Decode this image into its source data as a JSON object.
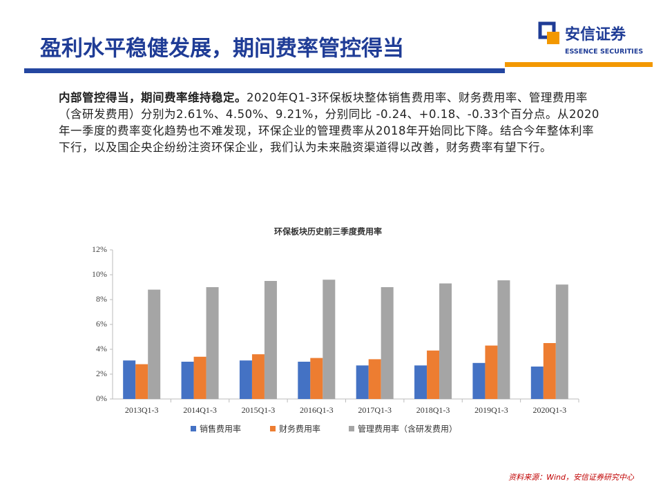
{
  "header": {
    "title": "盈利水平稳健发展，期间费率管控得当"
  },
  "logo": {
    "name": "安信证券",
    "english": "ESSENCE SECURITIES"
  },
  "body": {
    "lead": "内部管控得当，期间费率维持稳定。",
    "text": "2020年Q1-3环保板块整体销售费用率、财务费用率、管理费用率（含研发费用）分别为2.61%、4.50%、9.21%，分别同比 -0.24、+0.18、-0.33个百分点。从2020年一季度的费率变化趋势也不难发现，环保企业的管理费率从2018年开始同比下降。结合今年整体利率下行，以及国企央企纷纷注资环保企业，我们认为未来融资渠道得以改善，财务费率有望下行。"
  },
  "chart_data": {
    "type": "bar",
    "title": "环保板块历史前三季度费用率",
    "categories": [
      "2013Q1-3",
      "2014Q1-3",
      "2015Q1-3",
      "2016Q1-3",
      "2017Q1-3",
      "2018Q1-3",
      "2019Q1-3",
      "2020Q1-3"
    ],
    "series": [
      {
        "name": "销售费用率",
        "color": "#4472c4",
        "values": [
          3.1,
          3.0,
          3.1,
          3.0,
          2.7,
          2.7,
          2.9,
          2.61
        ]
      },
      {
        "name": "财务费用率",
        "color": "#ed7d31",
        "values": [
          2.8,
          3.4,
          3.6,
          3.3,
          3.2,
          3.9,
          4.3,
          4.5
        ]
      },
      {
        "name": "管理费用率（含研发费用）",
        "color": "#a5a5a5",
        "values": [
          8.8,
          9.0,
          9.5,
          9.6,
          9.0,
          9.3,
          9.55,
          9.21
        ]
      }
    ],
    "ylim": [
      0,
      12
    ],
    "yticks": [
      {
        "value": 0,
        "label": "0%"
      },
      {
        "value": 2,
        "label": "2%"
      },
      {
        "value": 4,
        "label": "4%"
      },
      {
        "value": 6,
        "label": "6%"
      },
      {
        "value": 8,
        "label": "8%"
      },
      {
        "value": 10,
        "label": "10%"
      },
      {
        "value": 12,
        "label": "12%"
      }
    ],
    "grid": false,
    "legend": "bottom"
  },
  "source": "资料来源：Wind，安信证券研究中心"
}
